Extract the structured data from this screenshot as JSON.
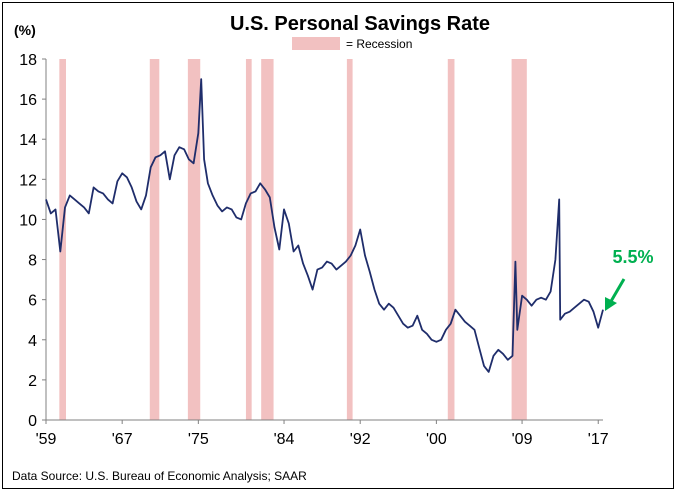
{
  "chart_data": {
    "type": "line",
    "title": "U.S. Personal Savings Rate",
    "ylabel": "(%)",
    "ylim": [
      0,
      18
    ],
    "yticks": [
      "0",
      "2",
      "4",
      "6",
      "8",
      "10",
      "12",
      "14",
      "16",
      "18"
    ],
    "xlim": [
      1959.0,
      2017.5
    ],
    "xticks": [
      {
        "label": "'59",
        "year": 1959
      },
      {
        "label": "'67",
        "year": 1967
      },
      {
        "label": "'75",
        "year": 1975
      },
      {
        "label": "'84",
        "year": 1984
      },
      {
        "label": "'92",
        "year": 1992
      },
      {
        "label": "'00",
        "year": 2000
      },
      {
        "label": "'09",
        "year": 2009
      },
      {
        "label": "'17",
        "year": 2017
      }
    ],
    "legend": {
      "label": "= Recession",
      "color": "#f2c1c1",
      "position": "top-center"
    },
    "recessions": [
      [
        1960.4,
        1961.1
      ],
      [
        1969.9,
        1970.9
      ],
      [
        1973.9,
        1975.2
      ],
      [
        1980.0,
        1980.6
      ],
      [
        1981.6,
        1982.9
      ],
      [
        1990.6,
        1991.2
      ],
      [
        2001.2,
        2001.9
      ],
      [
        2007.9,
        2009.5
      ]
    ],
    "series": [
      {
        "color": "#1f2d6b",
        "x": [
          1959.0,
          1959.5,
          1960.0,
          1960.5,
          1961.0,
          1961.5,
          1962.0,
          1962.5,
          1963.0,
          1963.5,
          1964.0,
          1964.5,
          1965.0,
          1965.5,
          1966.0,
          1966.5,
          1967.0,
          1967.5,
          1968.0,
          1968.5,
          1969.0,
          1969.5,
          1970.0,
          1970.5,
          1971.0,
          1971.5,
          1972.0,
          1972.5,
          1973.0,
          1973.5,
          1974.0,
          1974.5,
          1975.0,
          1975.3,
          1975.6,
          1976.0,
          1976.5,
          1977.0,
          1977.5,
          1978.0,
          1978.5,
          1979.0,
          1979.5,
          1980.0,
          1980.5,
          1981.0,
          1981.5,
          1982.0,
          1982.5,
          1983.0,
          1983.5,
          1984.0,
          1984.5,
          1985.0,
          1985.5,
          1986.0,
          1986.5,
          1987.0,
          1987.5,
          1988.0,
          1988.5,
          1989.0,
          1989.5,
          1990.0,
          1990.5,
          1991.0,
          1991.5,
          1992.0,
          1992.5,
          1993.0,
          1993.5,
          1994.0,
          1994.5,
          1995.0,
          1995.5,
          1996.0,
          1996.5,
          1997.0,
          1997.5,
          1998.0,
          1998.5,
          1999.0,
          1999.5,
          2000.0,
          2000.5,
          2001.0,
          2001.5,
          2002.0,
          2002.5,
          2003.0,
          2003.5,
          2004.0,
          2004.5,
          2005.0,
          2005.5,
          2006.0,
          2006.5,
          2007.0,
          2007.5,
          2008.0,
          2008.3,
          2008.5,
          2009.0,
          2009.5,
          2010.0,
          2010.5,
          2011.0,
          2011.5,
          2012.0,
          2012.5,
          2012.9,
          2013.0,
          2013.5,
          2014.0,
          2014.5,
          2015.0,
          2015.5,
          2016.0,
          2016.5,
          2017.0,
          2017.5
        ],
        "y": [
          11.0,
          10.3,
          10.5,
          8.4,
          10.6,
          11.2,
          11.0,
          10.8,
          10.6,
          10.3,
          11.6,
          11.4,
          11.3,
          11.0,
          10.8,
          11.9,
          12.3,
          12.1,
          11.6,
          10.9,
          10.5,
          11.2,
          12.6,
          13.1,
          13.2,
          13.4,
          12.0,
          13.2,
          13.6,
          13.5,
          13.0,
          12.8,
          14.3,
          17.0,
          13.0,
          11.8,
          11.2,
          10.7,
          10.4,
          10.6,
          10.5,
          10.1,
          10.0,
          10.8,
          11.3,
          11.4,
          11.8,
          11.5,
          11.1,
          9.6,
          8.5,
          10.5,
          9.8,
          8.4,
          8.7,
          7.8,
          7.2,
          6.5,
          7.5,
          7.6,
          7.9,
          7.8,
          7.5,
          7.7,
          7.9,
          8.2,
          8.7,
          9.5,
          8.2,
          7.4,
          6.5,
          5.8,
          5.5,
          5.8,
          5.6,
          5.2,
          4.8,
          4.6,
          4.7,
          5.2,
          4.5,
          4.3,
          4.0,
          3.9,
          4.0,
          4.5,
          4.8,
          5.5,
          5.2,
          4.9,
          4.7,
          4.5,
          3.6,
          2.7,
          2.4,
          3.2,
          3.5,
          3.3,
          3.0,
          3.2,
          7.9,
          4.5,
          6.2,
          6.0,
          5.7,
          6.0,
          6.1,
          6.0,
          6.4,
          8.0,
          11.0,
          5.0,
          5.3,
          5.4,
          5.6,
          5.8,
          6.0,
          5.9,
          5.4,
          4.6,
          5.5
        ]
      }
    ],
    "annotations": [
      {
        "text": "5.5%",
        "color": "#00b050"
      }
    ],
    "source": "Data Source:  U.S. Bureau of Economic Analysis; SAAR"
  }
}
